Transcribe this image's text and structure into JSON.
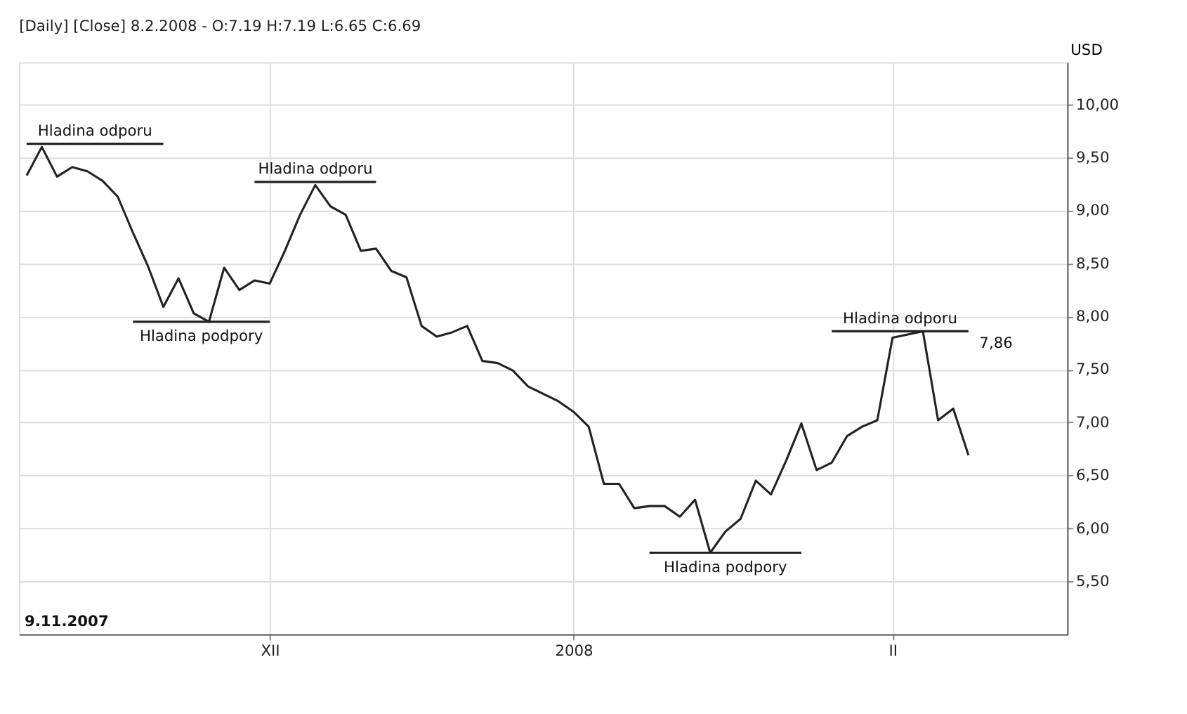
{
  "chart_data": {
    "type": "line",
    "title": "[Daily] [Close] 8.2.2008 - O:7.19 H:7.19 L:6.65 C:6.69",
    "ylabel": "USD",
    "categories": [
      null,
      null,
      null,
      null,
      null,
      null,
      null,
      null,
      null,
      null,
      null,
      null,
      null,
      null,
      null,
      null,
      "XII",
      null,
      null,
      null,
      null,
      null,
      null,
      null,
      null,
      null,
      null,
      null,
      null,
      null,
      null,
      null,
      null,
      null,
      null,
      null,
      "2008",
      null,
      null,
      null,
      null,
      null,
      null,
      null,
      null,
      null,
      null,
      null,
      null,
      null,
      null,
      null,
      null,
      null,
      null,
      null,
      null,
      "II",
      null,
      null,
      null,
      null,
      null,
      null,
      null,
      null,
      null,
      null,
      null
    ],
    "series": [
      {
        "color": "#222222",
        "values": [
          9.33,
          9.6,
          9.32,
          9.41,
          9.37,
          9.28,
          9.13,
          8.79,
          8.47,
          8.09,
          8.36,
          8.03,
          7.95,
          8.46,
          8.25,
          8.34,
          8.31,
          8.62,
          8.96,
          9.24,
          9.04,
          8.96,
          8.62,
          8.64,
          8.43,
          8.37,
          7.91,
          7.81,
          7.85,
          7.91,
          7.58,
          7.56,
          7.49,
          7.34,
          7.27,
          7.2,
          7.1,
          6.96,
          6.42,
          6.42,
          6.19,
          6.21,
          6.21,
          6.11,
          6.27,
          5.77,
          5.97,
          6.09,
          6.45,
          6.32,
          6.64,
          6.99,
          6.55,
          6.62,
          6.87,
          6.96,
          7.02,
          7.8,
          7.83,
          7.86,
          7.02,
          7.13,
          6.69,
          null,
          null,
          null,
          null,
          null,
          null
        ]
      },
      {
        "name": "Hladina odporu",
        "color": "#222222",
        "values": [
          9.63,
          9.63,
          9.63,
          9.63,
          9.63,
          9.63,
          9.63,
          9.63,
          9.63,
          9.63,
          null,
          null,
          null,
          null,
          null,
          null,
          null,
          null,
          null,
          null,
          null,
          null,
          null,
          null,
          null,
          null,
          null,
          null,
          null,
          null,
          null,
          null,
          null,
          null,
          null,
          null,
          null,
          null,
          null,
          null,
          null,
          null,
          null,
          null,
          null,
          null,
          null,
          null,
          null,
          null,
          null,
          null,
          null,
          null,
          null,
          null,
          null,
          null,
          null,
          null,
          null,
          null,
          null,
          null,
          null,
          null,
          null,
          null,
          null
        ]
      },
      {
        "name": "Hladina podpory",
        "color": "#222222",
        "values": [
          null,
          null,
          null,
          null,
          null,
          null,
          null,
          7.95,
          7.95,
          7.95,
          7.95,
          7.95,
          7.95,
          7.95,
          7.95,
          7.95,
          7.95,
          null,
          null,
          null,
          null,
          null,
          null,
          null,
          null,
          null,
          null,
          null,
          null,
          null,
          null,
          null,
          null,
          null,
          null,
          null,
          null,
          null,
          null,
          null,
          null,
          null,
          null,
          null,
          null,
          null,
          null,
          null,
          null,
          null,
          null,
          null,
          null,
          null,
          null,
          null,
          null,
          null,
          null,
          null,
          null,
          null,
          null,
          null,
          null,
          null,
          null,
          null,
          null
        ]
      },
      {
        "name": "Hladina odporu",
        "color": "#222222",
        "values": [
          null,
          null,
          null,
          null,
          null,
          null,
          null,
          null,
          null,
          null,
          null,
          null,
          null,
          null,
          null,
          9.27,
          9.27,
          9.27,
          9.27,
          9.27,
          9.27,
          9.27,
          9.27,
          9.27,
          null,
          null,
          null,
          null,
          null,
          null,
          null,
          null,
          null,
          null,
          null,
          null,
          null,
          null,
          null,
          null,
          null,
          null,
          null,
          null,
          null,
          null,
          null,
          null,
          null,
          null,
          null,
          null,
          null,
          null,
          null,
          null,
          null,
          null,
          null,
          null,
          null,
          null,
          null,
          null,
          null,
          null,
          null,
          null,
          null
        ]
      },
      {
        "name": "Hladina podpory",
        "color": "#222222",
        "values": [
          null,
          null,
          null,
          null,
          null,
          null,
          null,
          null,
          null,
          null,
          null,
          null,
          null,
          null,
          null,
          null,
          null,
          null,
          null,
          null,
          null,
          null,
          null,
          null,
          null,
          null,
          null,
          null,
          null,
          null,
          null,
          null,
          null,
          null,
          null,
          null,
          null,
          null,
          null,
          null,
          null,
          5.77,
          5.77,
          5.77,
          5.77,
          5.77,
          5.77,
          5.77,
          5.77,
          5.77,
          5.77,
          5.77,
          null,
          null,
          null,
          null,
          null,
          null,
          null,
          null,
          null,
          null,
          null,
          null,
          null,
          null,
          null,
          null,
          null
        ]
      },
      {
        "name": "Hladina odporu",
        "color": "#222222",
        "values": [
          null,
          null,
          null,
          null,
          null,
          null,
          null,
          null,
          null,
          null,
          null,
          null,
          null,
          null,
          null,
          null,
          null,
          null,
          null,
          null,
          null,
          null,
          null,
          null,
          null,
          null,
          null,
          null,
          null,
          null,
          null,
          null,
          null,
          null,
          null,
          null,
          null,
          null,
          null,
          null,
          null,
          null,
          null,
          null,
          null,
          null,
          null,
          null,
          null,
          null,
          null,
          null,
          null,
          7.86,
          7.86,
          7.86,
          7.86,
          7.86,
          7.86,
          7.86,
          7.86,
          7.86,
          7.86,
          null,
          null,
          null,
          null,
          null,
          null
        ],
        "value_labels": [
          null,
          null,
          null,
          null,
          null,
          null,
          null,
          null,
          null,
          null,
          null,
          null,
          null,
          null,
          null,
          null,
          null,
          null,
          null,
          null,
          null,
          null,
          null,
          null,
          null,
          null,
          null,
          null,
          null,
          null,
          null,
          null,
          null,
          null,
          null,
          null,
          null,
          null,
          null,
          null,
          null,
          null,
          null,
          null,
          null,
          null,
          null,
          null,
          null,
          null,
          null,
          null,
          null,
          null,
          null,
          null,
          null,
          null,
          null,
          null,
          null,
          null,
          "7,86",
          null,
          null,
          null,
          null,
          null,
          null
        ]
      }
    ],
    "annotations": [
      "9.11.2007"
    ],
    "ylim": [
      5.0,
      10.4
    ],
    "yticks": [
      {
        "value": 5.5,
        "label": "5,50"
      },
      {
        "value": 6,
        "label": "6,00"
      },
      {
        "value": 6.5,
        "label": "6,50"
      },
      {
        "value": 7,
        "label": "7,00"
      },
      {
        "value": 7.5,
        "label": "7,50"
      },
      {
        "value": 8,
        "label": "8,00"
      },
      {
        "value": 8.5,
        "label": "8,50"
      },
      {
        "value": 9,
        "label": "9,00"
      },
      {
        "value": 9.5,
        "label": "9,50"
      },
      {
        "value": 10,
        "label": "10,00"
      }
    ],
    "grid": true
  }
}
